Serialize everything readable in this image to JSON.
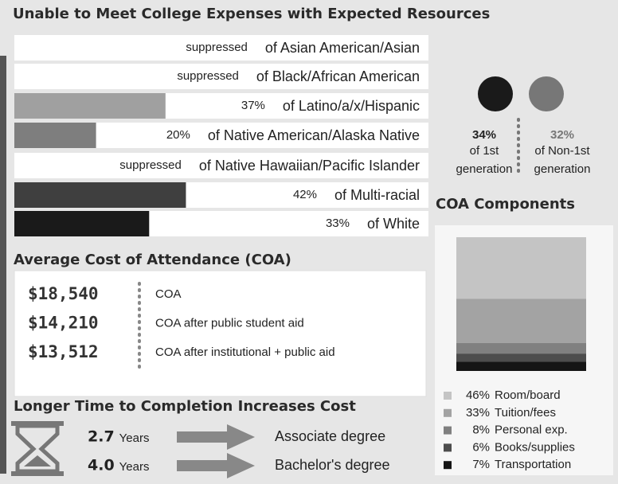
{
  "header": {
    "title": "Unable to Meet College Expenses with Expected Resources"
  },
  "groups": [
    {
      "label": "of Asian American/Asian",
      "value": null,
      "value_label": "suppressed",
      "color": "#ffffff"
    },
    {
      "label": "of Black/African American",
      "value": null,
      "value_label": "suppressed",
      "color": "#ffffff"
    },
    {
      "label": "of Latino/a/x/Hispanic",
      "value": 37,
      "value_label": "37%",
      "color": "#a0a0a0"
    },
    {
      "label": "of Native American/Alaska Native",
      "value": 20,
      "value_label": "20%",
      "color": "#7e7e7e"
    },
    {
      "label": "of Native Hawaiian/Pacific Islander",
      "value": null,
      "value_label": "suppressed",
      "color": "#ffffff"
    },
    {
      "label": "of Multi-racial",
      "value": 42,
      "value_label": "42%",
      "color": "#3f3f3f"
    },
    {
      "label": "of White",
      "value": 33,
      "value_label": "33%",
      "color": "#1a1a1a"
    }
  ],
  "generation": [
    {
      "value": "34%",
      "line1": "of 1st",
      "line2": "generation",
      "color": "#1a1a1a"
    },
    {
      "value": "32%",
      "line1": "of Non-1st",
      "line2": "generation",
      "color": "#777777"
    }
  ],
  "coa": {
    "title": "Average Cost of Attendance (COA)",
    "rows": [
      {
        "amount": "$18,540",
        "label": "COA"
      },
      {
        "amount": "$14,210",
        "label": "COA after public student aid"
      },
      {
        "amount": "$13,512",
        "label": "COA after institutional + public aid"
      }
    ]
  },
  "components": {
    "title": "COA Components",
    "items": [
      {
        "value": 46,
        "value_label": "46%",
        "name": "Room/board",
        "color": "#c4c4c4"
      },
      {
        "value": 33,
        "value_label": "33%",
        "name": "Tuition/fees",
        "color": "#a3a3a3"
      },
      {
        "value": 8,
        "value_label": "8%",
        "name": "Personal exp.",
        "color": "#808080"
      },
      {
        "value": 6,
        "value_label": "6%",
        "name": "Books/supplies",
        "color": "#4d4d4d"
      },
      {
        "value": 7,
        "value_label": "7%",
        "name": "Transportation",
        "color": "#151515"
      }
    ]
  },
  "completion": {
    "title": "Longer Time to  Completion Increases Cost",
    "rows": [
      {
        "years": "2.7",
        "unit": "Years",
        "degree": "Associate degree"
      },
      {
        "years": "4.0",
        "unit": "Years",
        "degree": "Bachelor's degree"
      }
    ]
  }
}
